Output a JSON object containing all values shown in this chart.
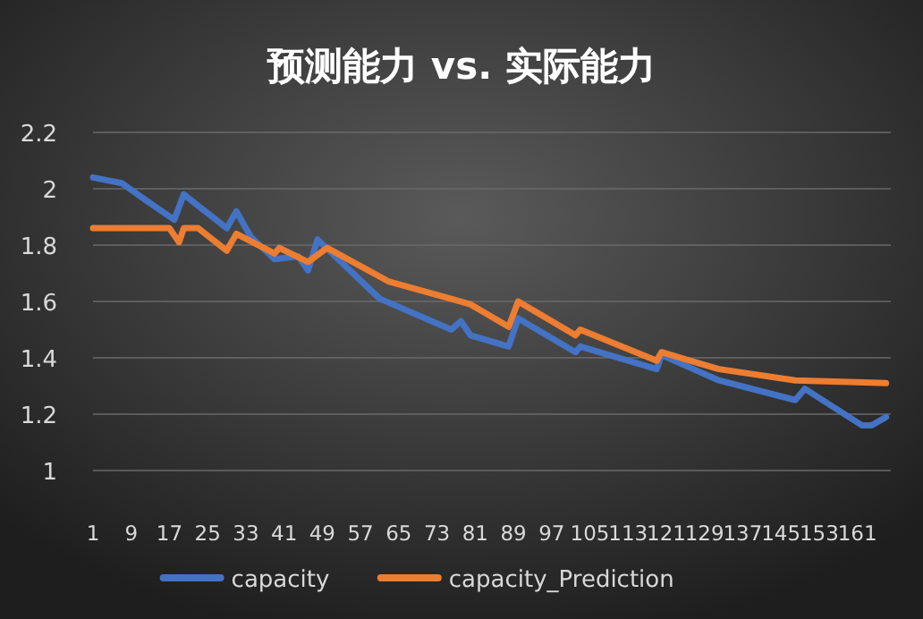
{
  "chart_data": {
    "type": "line",
    "title": "预测能力 vs. 实际能力",
    "xlim": [
      1,
      168
    ],
    "xticks": [
      1,
      9,
      17,
      25,
      33,
      41,
      49,
      57,
      65,
      73,
      81,
      89,
      97,
      105,
      113,
      121,
      129,
      137,
      145,
      153,
      161
    ],
    "ylim": [
      1,
      2.2
    ],
    "yticks": [
      1,
      1.2,
      1.4,
      1.6,
      1.8,
      2,
      2.2
    ],
    "grid": "y",
    "legend": "bottom",
    "marker": "none",
    "line_style": "solid",
    "series": [
      {
        "name": "capacity",
        "color": "#4472c4",
        "x": [
          1,
          4,
          7,
          12,
          18,
          20,
          23,
          29,
          31,
          34,
          39,
          44,
          46,
          48,
          61,
          76,
          78,
          80,
          88,
          90,
          102,
          103,
          119,
          120,
          132,
          148,
          150,
          162,
          164,
          167
        ],
        "values": [
          2.04,
          2.03,
          2.02,
          1.96,
          1.89,
          1.98,
          1.94,
          1.86,
          1.92,
          1.83,
          1.75,
          1.76,
          1.71,
          1.82,
          1.61,
          1.5,
          1.53,
          1.48,
          1.44,
          1.54,
          1.42,
          1.44,
          1.36,
          1.41,
          1.32,
          1.25,
          1.29,
          1.16,
          1.16,
          1.19
        ]
      },
      {
        "name": "capacity_Prediction",
        "color": "#ed7d31",
        "x": [
          1,
          17,
          19,
          20,
          23,
          29,
          31,
          39,
          40,
          46,
          50,
          63,
          80,
          88,
          90,
          102,
          103,
          119,
          120,
          132,
          148,
          167
        ],
        "values": [
          1.86,
          1.86,
          1.81,
          1.86,
          1.86,
          1.78,
          1.84,
          1.77,
          1.79,
          1.74,
          1.79,
          1.67,
          1.59,
          1.51,
          1.6,
          1.48,
          1.5,
          1.39,
          1.42,
          1.36,
          1.32,
          1.31
        ]
      }
    ]
  }
}
